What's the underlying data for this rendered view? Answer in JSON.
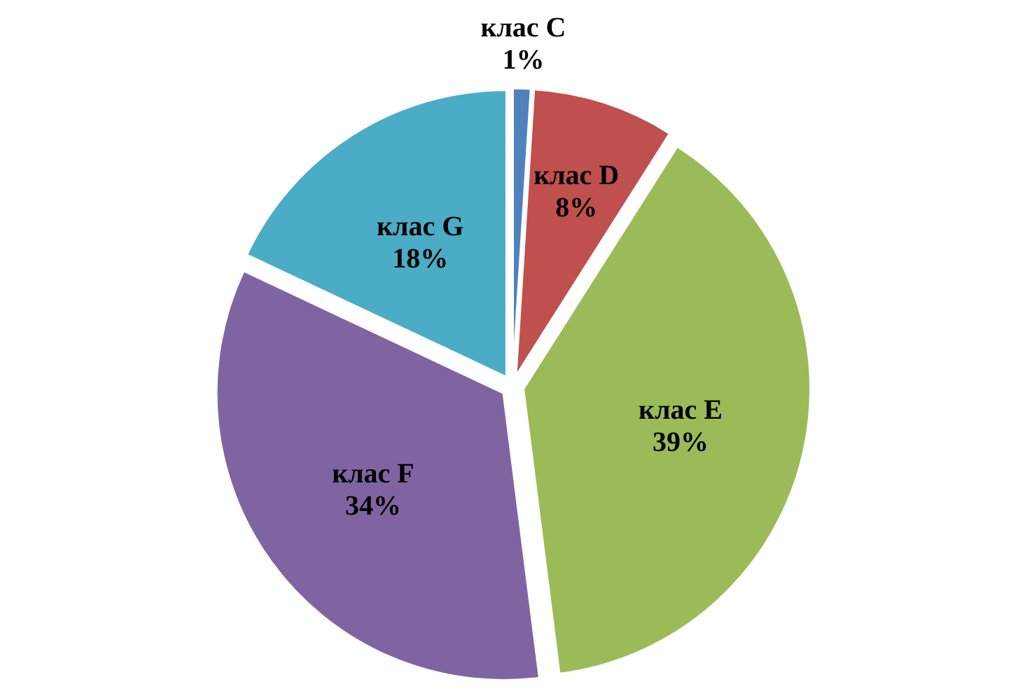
{
  "chart_data": {
    "type": "pie",
    "categories": [
      "клас C",
      "клас D",
      "клас E",
      "клас F",
      "клас G"
    ],
    "values": [
      1,
      8,
      39,
      34,
      18
    ],
    "colors": [
      "#4f81bd",
      "#c0504d",
      "#9bbb59",
      "#8064a2",
      "#4bacc6"
    ],
    "value_labels": [
      "1%",
      "8%",
      "39%",
      "34%",
      "18%"
    ]
  }
}
